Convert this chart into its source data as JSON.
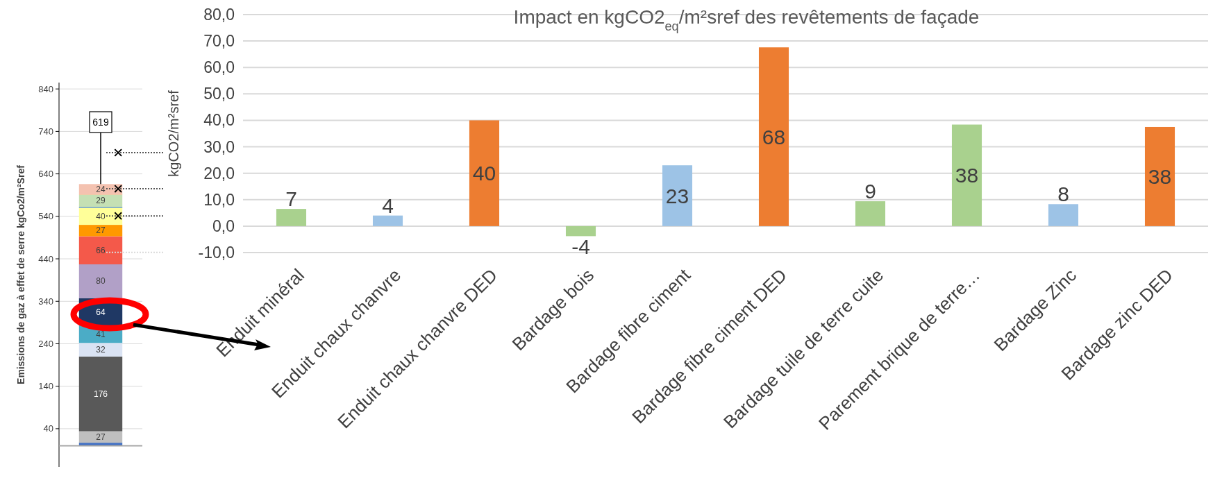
{
  "chart_data": [
    {
      "type": "bar",
      "stacked": true,
      "ylabel": "Emissions de gaz à effet de serre kgCo2/m²Sref",
      "categories": [
        null
      ],
      "ylim": [
        -50,
        855
      ],
      "yticks": [
        40,
        140,
        240,
        340,
        440,
        540,
        640,
        740,
        840
      ],
      "grid": "y",
      "annotations": [
        "619"
      ],
      "ref_lines": [
        {
          "axis": "y",
          "value": 690,
          "line_style": "dotted",
          "color": "#555555"
        },
        {
          "axis": "y",
          "value": 605,
          "line_style": "dotted",
          "color": "#555555"
        },
        {
          "axis": "y",
          "value": 541,
          "line_style": "dotted",
          "color": "#555555"
        },
        {
          "axis": "y",
          "value": 455,
          "line_style": "dotted",
          "color": "#d9d9d9"
        }
      ],
      "series": [
        {
          "color": "#4472c4",
          "values": [
            7
          ]
        },
        {
          "color": "#bfbfbf",
          "values": [
            27
          ],
          "value_labels": [
            "27"
          ]
        },
        {
          "color": "#595959",
          "values": [
            176
          ],
          "value_labels": [
            "176"
          ]
        },
        {
          "color": "#dae3f3",
          "values": [
            32
          ],
          "value_labels": [
            "32"
          ]
        },
        {
          "color": "#4bacc6",
          "values": [
            41
          ],
          "value_labels": [
            "41"
          ]
        },
        {
          "color": "#1f3864",
          "values": [
            64
          ],
          "value_labels": [
            "64"
          ]
        },
        {
          "color": "#b1a0c7",
          "values": [
            80
          ],
          "value_labels": [
            "80"
          ]
        },
        {
          "color": "#f4594a",
          "values": [
            66
          ],
          "value_labels": [
            "66"
          ]
        },
        {
          "color": "#ff9900",
          "values": [
            27
          ],
          "value_labels": [
            "27"
          ]
        },
        {
          "color": "#ffff99",
          "values": [
            40
          ],
          "value_labels": [
            "40"
          ]
        },
        {
          "color": "#2e75b6",
          "values": [
            2
          ]
        },
        {
          "color": "#c5e0b4",
          "values": [
            29
          ],
          "value_labels": [
            "29"
          ]
        },
        {
          "color": "#f4b183",
          "values": [
            1
          ]
        },
        {
          "color": "#f4c2b0",
          "values": [
            24
          ],
          "value_labels": [
            "24"
          ]
        },
        {
          "type": "scatter",
          "marker": "cross",
          "color": "#000000",
          "values": [
            690
          ]
        },
        {
          "type": "scatter",
          "marker": "cross",
          "color": "#000000",
          "values": [
            605
          ]
        },
        {
          "type": "scatter",
          "marker": "cross",
          "color": "#000000",
          "values": [
            541
          ]
        }
      ]
    },
    {
      "type": "bar",
      "title": "Impact en kgCO2$_{eq}$/m²sref des revêtements de façade",
      "ylabel": "kgCO2/m²sref",
      "categories": [
        "Enduit minéral",
        "Enduit chaux chanvre",
        "Enduit chaux chanvre DED",
        "Bardage bois",
        "Bardage fibre ciment",
        "Bardage fibre ciment DED",
        "Bardage tuile de terre cuite",
        "Parement brique de terre…",
        "Bardage Zinc",
        "Bardage zinc DED"
      ],
      "ylim": [
        -10,
        80
      ],
      "yticks": [
        {
          "value": -10,
          "label": "-10,0"
        },
        {
          "value": 0,
          "label": "0,0"
        },
        {
          "value": 10,
          "label": "10,0"
        },
        {
          "value": 20,
          "label": "20,0"
        },
        {
          "value": 30,
          "label": "30,0"
        },
        {
          "value": 40,
          "label": "40,0"
        },
        {
          "value": 50,
          "label": "50,0"
        },
        {
          "value": 60,
          "label": "60,0"
        },
        {
          "value": 70,
          "label": "70,0"
        },
        {
          "value": 80,
          "label": "80,0"
        }
      ],
      "grid": "y",
      "series": [
        {
          "values": [
            6.5,
            4,
            40,
            -3.8,
            23,
            67.6,
            9.4,
            38.4,
            8.3,
            37.5
          ],
          "value_labels": [
            "7",
            "4",
            "40",
            "-4",
            "23",
            "68",
            "9",
            "38",
            "8",
            "38"
          ],
          "colors": [
            "#a9d18e",
            "#9dc3e6",
            "#ed7d31",
            "#a9d18e",
            "#9dc3e6",
            "#ed7d31",
            "#a9d18e",
            "#a9d18e",
            "#9dc3e6",
            "#ed7d31"
          ]
        }
      ]
    }
  ]
}
